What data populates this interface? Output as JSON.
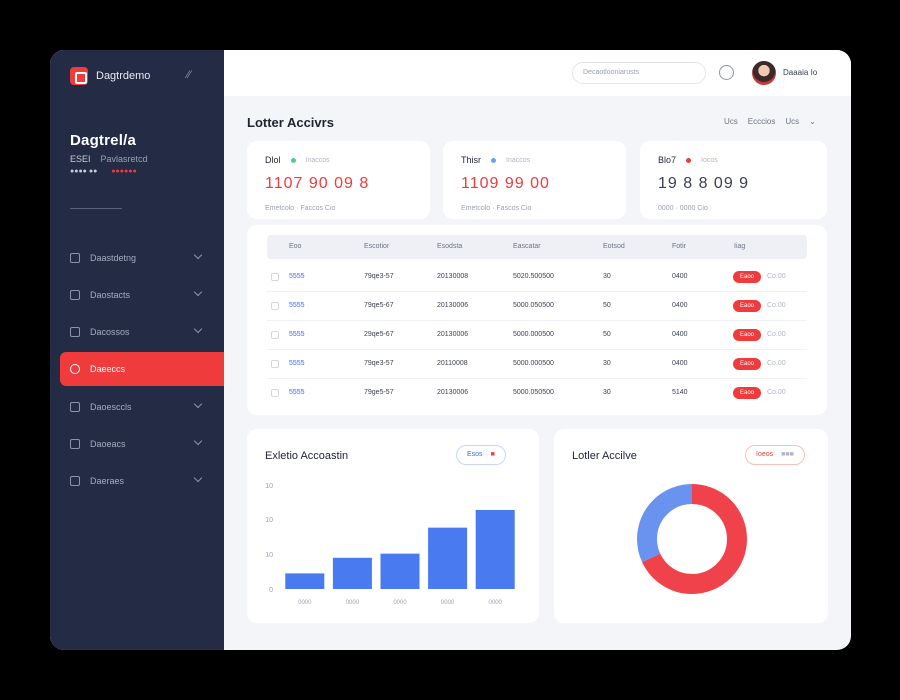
{
  "brand": {
    "name": "Dagtrdemo"
  },
  "sidebar": {
    "profile_title": "Dagtrel/a",
    "profile_line_a": "ESEI",
    "profile_line_b": "Pavlasretcd",
    "profile_line2_a": "●●●● ●●",
    "profile_line2_b": "●●●●●●",
    "items": [
      {
        "label": "Daastdetng"
      },
      {
        "label": "Daostacts"
      },
      {
        "label": "Dacossos"
      },
      {
        "label": "Daeeccs"
      },
      {
        "label": "Daoesccls"
      },
      {
        "label": "Daoeacs"
      },
      {
        "label": "Daeraes"
      }
    ]
  },
  "topbar": {
    "search_placeholder": "Decaotlooniarusts",
    "user_name": "Daaaia  Io"
  },
  "page": {
    "title": "Lotter Accivrs",
    "controls": [
      "Ucs",
      "Ecccios",
      "Ucs"
    ]
  },
  "stats": [
    {
      "label": "Dlol",
      "sub": "Inaccos",
      "value": "1107  90  09  8",
      "foot": "Emetcolo  ·  Faccos  Cio",
      "color": "#ef3b3b",
      "dot": "#59c58a"
    },
    {
      "label": "Thisr",
      "sub": "Inaccos",
      "value": "1109  99  00",
      "foot": "Emetcolo  ·  Fascos  Cio",
      "color": "#ef3b3b",
      "dot": "#6ea0ef"
    },
    {
      "label": "Blo7",
      "sub": "Iocos",
      "value": "19  8  8  09  9",
      "foot": "0000 · 0000  Cio",
      "color": "#3a3f52",
      "dot": "#ef3b3b"
    }
  ],
  "table": {
    "headers": [
      "Eoo",
      "Escotior",
      "Esodsta",
      "Eascatar",
      "Eotsod",
      "Fotir",
      "Iiag"
    ],
    "rows": [
      {
        "id": "5555",
        "a": "79qe3-57",
        "b": "20130008",
        "c": "5020.500500",
        "d": "30",
        "e": "0400",
        "badge": "Eaoo",
        "side": "Co.00"
      },
      {
        "id": "5555",
        "a": "79qe5-67",
        "b": "20130006",
        "c": "5000.050500",
        "d": "50",
        "e": "0400",
        "badge": "Eaoo",
        "side": "Co.00"
      },
      {
        "id": "5555",
        "a": "29qe5-67",
        "b": "20130006",
        "c": "5000.000500",
        "d": "50",
        "e": "0400",
        "badge": "Eaoo",
        "side": "Co.00"
      },
      {
        "id": "5555",
        "a": "79qe3-57",
        "b": "20110008",
        "c": "5000.000500",
        "d": "30",
        "e": "0400",
        "badge": "Eaoo",
        "side": "Co.00"
      },
      {
        "id": "5555",
        "a": "79ge5-57",
        "b": "20130006",
        "c": "5000.050500",
        "d": "30",
        "e": "5140",
        "badge": "Eaoo",
        "side": "Co.00"
      }
    ]
  },
  "bar_chart": {
    "title": "Exletio Accoastin",
    "pill_a": "Esos",
    "pill_b": "■",
    "chart_data": {
      "type": "bar",
      "categories": [
        "0000",
        "0000",
        "0000",
        "0000",
        "0000"
      ],
      "values": [
        15,
        30,
        34,
        59,
        76
      ],
      "y_ticks": [
        "10",
        "10",
        "10",
        "0"
      ],
      "ylim": [
        0,
        100
      ],
      "color": "#4a7af0"
    }
  },
  "donut_chart": {
    "title": "Lotler Accilve",
    "pill_a": "Ioeos",
    "pill_b": "■■■",
    "chart_data": {
      "type": "pie",
      "categories": [
        "Red",
        "Blue"
      ],
      "values": [
        68,
        32
      ],
      "colors": [
        "#f0424a",
        "#6a93ef"
      ]
    }
  }
}
